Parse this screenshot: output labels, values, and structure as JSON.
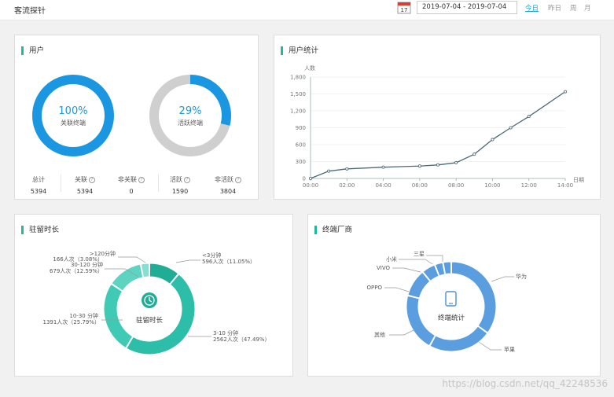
{
  "header": {
    "title": "客流探针",
    "calendar_day": "17",
    "date_range": "2019-07-04 - 2019-07-04",
    "ranges": [
      "今日",
      "昨日",
      "周",
      "月"
    ],
    "active_range": "今日"
  },
  "user_panel": {
    "title": "用户",
    "ring1": {
      "percent": "100%",
      "label": "关联终端",
      "fraction": 1.0
    },
    "ring2": {
      "percent": "29%",
      "label": "活跃终端",
      "fraction": 0.29
    },
    "stats": [
      {
        "label": "总计",
        "value": "5394",
        "help": false
      },
      {
        "label": "关联",
        "value": "5394",
        "help": true
      },
      {
        "label": "非关联",
        "value": "0",
        "help": true
      },
      {
        "label": "活跃",
        "value": "1590",
        "help": true
      },
      {
        "label": "非活跃",
        "value": "3804",
        "help": true
      }
    ],
    "colors": {
      "blue": "#1a97e0",
      "gray": "#cfcfcf"
    }
  },
  "stats_panel": {
    "title": "用户统计",
    "chart_data": {
      "type": "line",
      "ylabel": "人数",
      "xlabel": "日期",
      "ylim": [
        0,
        1800
      ],
      "yticks": [
        "0",
        "300",
        "600",
        "900",
        "1,200",
        "1,500",
        "1,800"
      ],
      "xticks": [
        "00:00",
        "02:00",
        "04:00",
        "06:00",
        "08:00",
        "10:00",
        "12:00",
        "14:00"
      ],
      "x": [
        0,
        1,
        2,
        4,
        6,
        7,
        8,
        9,
        10,
        11,
        12,
        14
      ],
      "values": [
        0,
        130,
        170,
        200,
        220,
        240,
        280,
        430,
        690,
        900,
        1100,
        1540
      ],
      "color": "#4a6a78"
    }
  },
  "dwell_panel": {
    "title": "驻留时长",
    "center_label": "驻留时长",
    "chart_data": {
      "type": "pie",
      "segments": [
        {
          "name": "<3分钟",
          "detail": "596人次（11.05%）",
          "value": 11.05,
          "color": "#1fae95"
        },
        {
          "name": "3-10 分钟",
          "detail": "2562人次（47.49%）",
          "value": 47.49,
          "color": "#2cbea9"
        },
        {
          "name": "10-30 分钟",
          "detail": "1391人次（25.79%）",
          "value": 25.79,
          "color": "#3fcab5"
        },
        {
          "name": "30-120 分钟",
          "detail": "679人次（12.59%）",
          "value": 12.59,
          "color": "#5fd3c1"
        },
        {
          "name": ">120分钟",
          "detail": "166人次（3.08%）",
          "value": 3.08,
          "color": "#86dfd1"
        }
      ]
    }
  },
  "vendor_panel": {
    "title": "终端厂商",
    "center_label": "终端统计",
    "chart_data": {
      "type": "pie",
      "segments": [
        {
          "name": "华为",
          "value": 35,
          "color": "#5b9ee0"
        },
        {
          "name": "苹果",
          "value": 23,
          "color": "#5b9ee0"
        },
        {
          "name": "其他",
          "value": 21,
          "color": "#5b9ee0"
        },
        {
          "name": "OPPO",
          "value": 10,
          "color": "#5b9ee0"
        },
        {
          "name": "VIVO",
          "value": 5,
          "color": "#5b9ee0"
        },
        {
          "name": "小米",
          "value": 3,
          "color": "#5b9ee0"
        },
        {
          "name": "三星",
          "value": 3,
          "color": "#5b9ee0"
        }
      ]
    }
  },
  "watermark": "https://blog.csdn.net/qq_42248536"
}
